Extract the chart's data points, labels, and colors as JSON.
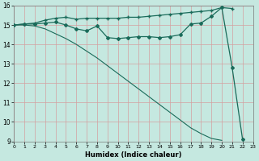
{
  "title": "",
  "xlabel": "Humidex (Indice chaleur)",
  "x": [
    0,
    1,
    2,
    3,
    4,
    5,
    6,
    7,
    8,
    9,
    10,
    11,
    12,
    13,
    14,
    15,
    16,
    17,
    18,
    19,
    20,
    21,
    22,
    23
  ],
  "line1_y": [
    15.0,
    15.05,
    15.1,
    15.25,
    15.35,
    15.4,
    15.3,
    15.35,
    15.35,
    15.35,
    15.35,
    15.4,
    15.4,
    15.45,
    15.5,
    15.55,
    15.6,
    15.65,
    15.7,
    15.75,
    15.9,
    15.85,
    null,
    null
  ],
  "line2_y": [
    15.0,
    15.05,
    15.05,
    15.1,
    15.15,
    15.0,
    14.8,
    14.7,
    14.95,
    14.35,
    14.3,
    14.35,
    14.4,
    14.4,
    14.35,
    14.4,
    14.5,
    15.05,
    15.1,
    15.45,
    15.9,
    12.8,
    9.1,
    null
  ],
  "line3_y": [
    15.0,
    15.0,
    14.95,
    14.8,
    14.55,
    14.3,
    14.0,
    13.65,
    13.3,
    12.9,
    12.5,
    12.1,
    11.7,
    11.3,
    10.9,
    10.5,
    10.1,
    9.7,
    9.4,
    9.15,
    9.05,
    null,
    9.05,
    null
  ],
  "line_color": "#1a6b5a",
  "bg_color": "#c5e8e0",
  "grid_color_major": "#d4a0a0",
  "grid_color_minor": "#d4a0a0",
  "xlim": [
    0,
    23
  ],
  "ylim": [
    9,
    16
  ],
  "yticks": [
    9,
    10,
    11,
    12,
    13,
    14,
    15,
    16
  ],
  "xticks": [
    0,
    1,
    2,
    3,
    4,
    5,
    6,
    7,
    8,
    9,
    10,
    11,
    12,
    13,
    14,
    15,
    16,
    17,
    18,
    19,
    20,
    21,
    22,
    23
  ]
}
